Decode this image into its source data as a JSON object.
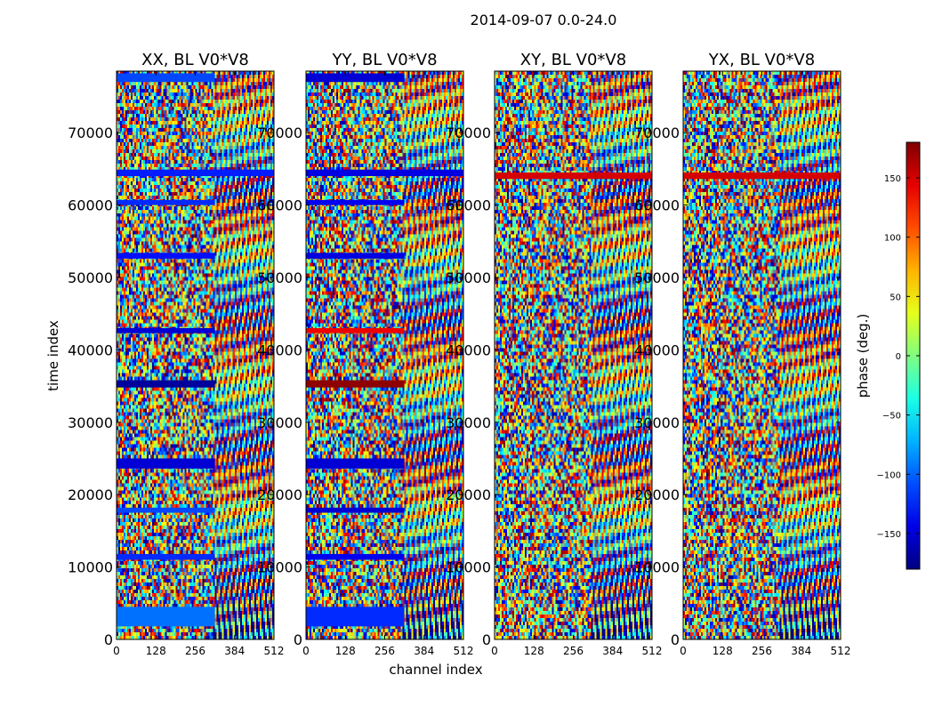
{
  "chart_data": {
    "type": "heatmap",
    "title": "2014-09-07 0.0-24.0",
    "xlabel": "channel index",
    "ylabel": "time index",
    "xlim": [
      0,
      512
    ],
    "ylim": [
      0,
      78500
    ],
    "x_ticks": [
      0,
      128,
      256,
      384,
      512
    ],
    "y_ticks": [
      0,
      10000,
      20000,
      30000,
      40000,
      50000,
      60000,
      70000
    ],
    "panels": [
      {
        "title": "XX, BL V0*V8",
        "flagged_bands": [
          {
            "y0": 77000,
            "y1": 78200,
            "x1": 320,
            "phase": -110
          },
          {
            "y0": 64000,
            "y1": 64900,
            "x1": 512,
            "phase": -125
          },
          {
            "y0": 60000,
            "y1": 60700,
            "x1": 320,
            "phase": -120
          },
          {
            "y0": 52600,
            "y1": 53400,
            "x1": 320,
            "phase": -130
          },
          {
            "y0": 42300,
            "y1": 43000,
            "x1": 320,
            "phase": -150
          },
          {
            "y0": 34800,
            "y1": 35800,
            "x1": 320,
            "phase": -170
          },
          {
            "y0": 23600,
            "y1": 25000,
            "x1": 320,
            "phase": -150
          },
          {
            "y0": 17500,
            "y1": 18200,
            "x1": 320,
            "phase": -110
          },
          {
            "y0": 11000,
            "y1": 11800,
            "x1": 320,
            "phase": -120
          },
          {
            "y0": 1800,
            "y1": 4500,
            "x1": 320,
            "phase": -95
          }
        ]
      },
      {
        "title": "YY, BL V0*V8",
        "flagged_bands": [
          {
            "y0": 77000,
            "y1": 78200,
            "x1": 320,
            "phase": -150
          },
          {
            "y0": 64000,
            "y1": 64900,
            "x1": 512,
            "phase": -145
          },
          {
            "y0": 60000,
            "y1": 60700,
            "x1": 320,
            "phase": -140
          },
          {
            "y0": 52600,
            "y1": 53400,
            "x1": 320,
            "phase": -145
          },
          {
            "y0": 42300,
            "y1": 43000,
            "x1": 320,
            "phase": 140
          },
          {
            "y0": 34800,
            "y1": 35800,
            "x1": 320,
            "phase": 175
          },
          {
            "y0": 23600,
            "y1": 25000,
            "x1": 320,
            "phase": -150
          },
          {
            "y0": 17500,
            "y1": 18200,
            "x1": 320,
            "phase": -150
          },
          {
            "y0": 11000,
            "y1": 11800,
            "x1": 320,
            "phase": -140
          },
          {
            "y0": 1800,
            "y1": 4500,
            "x1": 320,
            "phase": -120
          }
        ]
      },
      {
        "title": "XY, BL V0*V8",
        "flagged_bands": [
          {
            "y0": 63600,
            "y1": 64500,
            "x1": 512,
            "phase": 150
          }
        ]
      },
      {
        "title": "YX, BL V0*V8",
        "flagged_bands": [
          {
            "y0": 63600,
            "y1": 64500,
            "x1": 512,
            "phase": 150
          }
        ]
      }
    ],
    "colorbar": {
      "label": "phase (deg.)",
      "range": [
        -180,
        180
      ],
      "ticks": [
        150,
        100,
        50,
        0,
        -50,
        -100,
        -150
      ],
      "tick_labels": [
        "150",
        "100",
        "50",
        "0",
        "−50",
        "−100",
        "−150"
      ],
      "colormap": "jet"
    }
  }
}
